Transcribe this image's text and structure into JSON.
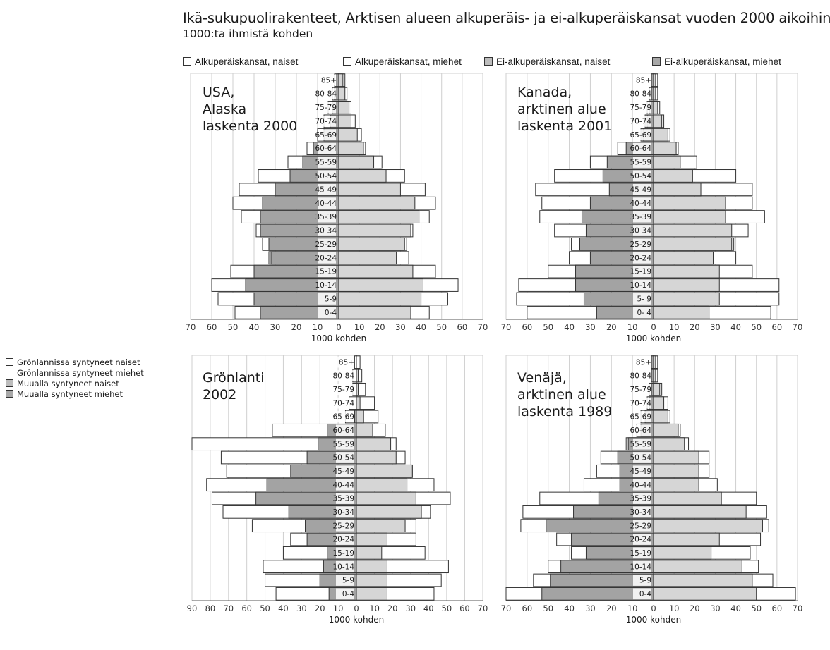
{
  "title": "Ikä-sukupuolirakenteet, Arktisen alueen alkuperäis- ja ei-alkuperäiskansat vuoden 2000 aikoihin",
  "subtitle": "1000:ta ihmistä kohden",
  "legend_top": [
    {
      "label": "Alkuperäiskansat, naiset",
      "color": "#ffffff"
    },
    {
      "label": "Alkuperäiskansat, miehet",
      "color": "#ffffff"
    },
    {
      "label": "Ei-alkuperäiskansat, naiset",
      "color": "#bdbdbd"
    },
    {
      "label": "Ei-alkuperäiskansat, miehet",
      "color": "#a8a8a8"
    }
  ],
  "legend_side": [
    {
      "label": "Grönlannissa syntyneet naiset",
      "color": "#ffffff"
    },
    {
      "label": "Grönlannissa syntyneet miehet",
      "color": "#ffffff"
    },
    {
      "label": "Muualla syntyneet naiset",
      "color": "#bdbdbd"
    },
    {
      "label": "Muualla syntyneet miehet",
      "color": "#a8a8a8"
    }
  ],
  "colors": {
    "indigenous": "#ffffff",
    "non_indigenous_left": "#a3a3a3",
    "non_indigenous_right": "#d6d6d6",
    "outline": "#333333",
    "grid": "#cfcfcf"
  },
  "chart_data": [
    {
      "id": "usa",
      "type": "bar",
      "subtype": "population-pyramid",
      "title_lines": [
        "USA,",
        "Alaska",
        "laskenta 2000"
      ],
      "xlabel": "1000 kohden",
      "xlim_left": 70,
      "xlim_right": 70,
      "xticks_left": [
        70,
        60,
        50,
        40,
        30,
        20,
        10,
        0
      ],
      "xticks_right": [
        10,
        20,
        30,
        40,
        50,
        60,
        70
      ],
      "grid": true,
      "age_groups": [
        "85+",
        "80-84",
        "75-79",
        "70-74",
        "65-69",
        "60-64",
        "55-59",
        "50-54",
        "45-49",
        "40-44",
        "35-39",
        "30-34",
        "25-29",
        "20-24",
        "15-19",
        "10-14",
        "5-9",
        "0-4"
      ],
      "series": [
        {
          "side": "left",
          "part": "total",
          "values": [
            2,
            3,
            5,
            7,
            10,
            15,
            24,
            38,
            47,
            50,
            46,
            39,
            36,
            33,
            51,
            60,
            57,
            49
          ]
        },
        {
          "side": "left",
          "part": "non_indigenous",
          "values": [
            1,
            2,
            3,
            4,
            7,
            12,
            17,
            23,
            30,
            36,
            37,
            37,
            33,
            32,
            40,
            44,
            40,
            37
          ]
        },
        {
          "side": "right",
          "part": "total",
          "values": [
            3,
            4,
            6,
            8,
            11,
            13,
            21,
            32,
            42,
            47,
            44,
            36,
            33,
            34,
            47,
            58,
            53,
            44
          ]
        },
        {
          "side": "right",
          "part": "non_indigenous",
          "values": [
            2,
            3,
            5,
            6,
            9,
            12,
            17,
            23,
            30,
            37,
            39,
            35,
            32,
            28,
            36,
            41,
            40,
            35
          ]
        }
      ]
    },
    {
      "id": "canada",
      "type": "bar",
      "subtype": "population-pyramid",
      "title_lines": [
        "Kanada,",
        "arktinen alue",
        "laskenta 2001"
      ],
      "xlabel": "1000 kohden",
      "xlim_left": 70,
      "xlim_right": 70,
      "xticks_left": [
        70,
        60,
        50,
        40,
        30,
        20,
        10,
        0
      ],
      "xticks_right": [
        10,
        20,
        30,
        40,
        50,
        60,
        70
      ],
      "grid": true,
      "age_groups": [
        "85+",
        "80-84",
        "75-79",
        "70-74",
        "65-69",
        "60-64",
        "55-59",
        "50-54",
        "45-49",
        "40-44",
        "35-39",
        "30-34",
        "25-29",
        "20-24",
        "15-19",
        "10-14",
        "5- 9",
        "0- 4"
      ],
      "series": [
        {
          "side": "left",
          "part": "total",
          "values": [
            1,
            2,
            3,
            4,
            6,
            17,
            30,
            47,
            56,
            53,
            54,
            47,
            39,
            40,
            50,
            64,
            65,
            60
          ]
        },
        {
          "side": "left",
          "part": "non_indigenous",
          "values": [
            1,
            1,
            2,
            3,
            5,
            13,
            22,
            24,
            21,
            30,
            34,
            32,
            35,
            30,
            37,
            37,
            33,
            27
          ]
        },
        {
          "side": "right",
          "part": "total",
          "values": [
            2,
            2,
            3,
            5,
            8,
            12,
            21,
            40,
            48,
            48,
            54,
            46,
            39,
            40,
            48,
            61,
            61,
            57
          ]
        },
        {
          "side": "right",
          "part": "non_indigenous",
          "values": [
            1,
            1,
            2,
            4,
            7,
            11,
            13,
            19,
            23,
            35,
            35,
            38,
            38,
            29,
            32,
            32,
            32,
            27
          ]
        }
      ]
    },
    {
      "id": "greenland",
      "type": "bar",
      "subtype": "population-pyramid",
      "title_lines": [
        "Grönlanti",
        "2002"
      ],
      "xlabel": "1000 kohden",
      "xlim_left": 90,
      "xlim_right": 70,
      "xticks_left": [
        90,
        80,
        70,
        60,
        50,
        40,
        30,
        20,
        10,
        0
      ],
      "xticks_right": [
        10,
        20,
        30,
        40,
        50,
        60,
        70
      ],
      "grid": true,
      "age_groups": [
        "85+",
        "80-84",
        "75-79",
        "70-74",
        "65-69",
        "60-64",
        "55-59",
        "50-54",
        "45-49",
        "40-44",
        "35-39",
        "30-34",
        "25-29",
        "20-24",
        "15-19",
        "10-14",
        "5-9",
        "0-4"
      ],
      "series": [
        {
          "side": "left",
          "part": "total",
          "values": [
            1,
            2,
            2,
            4,
            6,
            46,
            90,
            74,
            71,
            82,
            79,
            73,
            57,
            36,
            40,
            51,
            50,
            44
          ]
        },
        {
          "side": "left",
          "part": "born_elsewhere",
          "values": [
            0,
            0,
            0,
            0,
            1,
            16,
            21,
            27,
            36,
            49,
            55,
            37,
            28,
            27,
            16,
            18,
            20,
            15
          ]
        },
        {
          "side": "right",
          "part": "total",
          "values": [
            2,
            3,
            5,
            10,
            12,
            16,
            22,
            27,
            31,
            43,
            52,
            41,
            33,
            33,
            38,
            51,
            47,
            43
          ]
        },
        {
          "side": "right",
          "part": "born_elsewhere",
          "values": [
            0,
            1,
            1,
            2,
            4,
            9,
            19,
            22,
            31,
            28,
            33,
            36,
            27,
            17,
            14,
            17,
            17,
            17
          ]
        }
      ]
    },
    {
      "id": "russia",
      "type": "bar",
      "subtype": "population-pyramid",
      "title_lines": [
        "Venäjä,",
        "arktinen alue",
        "laskenta 1989"
      ],
      "xlabel": "1000 kohden",
      "xlim_left": 70,
      "xlim_right": 70,
      "xticks_left": [
        70,
        60,
        50,
        40,
        30,
        20,
        10,
        0
      ],
      "xticks_right": [
        10,
        20,
        30,
        40,
        50,
        60,
        70
      ],
      "grid": true,
      "age_groups": [
        "85+",
        "80-84",
        "75-79",
        "70-74",
        "65-69",
        "60-64",
        "55-59",
        "50-54",
        "45-49",
        "40-44",
        "35-39",
        "30-34",
        "25-29",
        "20-24",
        "15-19",
        "10-14",
        "5-9",
        "0-4"
      ],
      "series": [
        {
          "side": "left",
          "part": "total",
          "values": [
            1,
            1,
            2,
            3,
            6,
            8,
            13,
            25,
            27,
            33,
            54,
            62,
            63,
            46,
            39,
            50,
            57,
            70
          ]
        },
        {
          "side": "left",
          "part": "non_indigenous",
          "values": [
            1,
            1,
            1,
            2,
            4,
            6,
            12,
            17,
            16,
            16,
            26,
            38,
            51,
            39,
            32,
            44,
            49,
            53
          ]
        },
        {
          "side": "right",
          "part": "total",
          "values": [
            2,
            2,
            4,
            7,
            8,
            13,
            17,
            27,
            27,
            31,
            50,
            55,
            56,
            52,
            47,
            51,
            58,
            69
          ]
        },
        {
          "side": "right",
          "part": "non_indigenous",
          "values": [
            1,
            1,
            3,
            5,
            7,
            12,
            15,
            22,
            22,
            22,
            33,
            45,
            53,
            32,
            28,
            43,
            48,
            50
          ]
        }
      ]
    }
  ]
}
